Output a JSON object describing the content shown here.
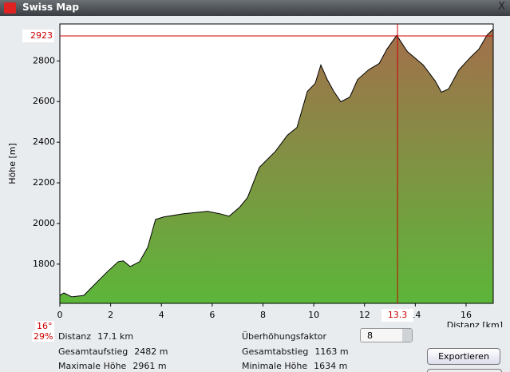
{
  "window": {
    "title": "Swiss Map",
    "close": "X"
  },
  "chart_data": {
    "type": "area",
    "y_label": "Höhe [m]",
    "x_label": "Distanz [km]",
    "x": [
      0,
      0.16,
      0.47,
      0.94,
      1.26,
      1.89,
      2.3,
      2.5,
      2.77,
      3.14,
      3.46,
      3.77,
      4.09,
      4.87,
      5.82,
      6.29,
      6.67,
      7.08,
      7.39,
      7.86,
      8.49,
      8.96,
      9.34,
      9.75,
      10.06,
      10.28,
      10.53,
      10.79,
      11.07,
      11.42,
      11.73,
      12.17,
      12.58,
      12.89,
      13.27,
      13.68,
      14.31,
      14.78,
      15.03,
      15.31,
      15.72,
      16.19,
      16.51,
      16.82,
      17.07
    ],
    "values": [
      1646,
      1658,
      1639,
      1646,
      1686,
      1765,
      1812,
      1816,
      1788,
      1812,
      1883,
      2020,
      2032,
      2048,
      2060,
      2048,
      2036,
      2080,
      2127,
      2276,
      2355,
      2434,
      2473,
      2650,
      2690,
      2780,
      2709,
      2650,
      2599,
      2622,
      2709,
      2757,
      2788,
      2859,
      2926,
      2847,
      2780,
      2702,
      2646,
      2662,
      2757,
      2820,
      2859,
      2926,
      2957
    ],
    "xlim": [
      0,
      17.07
    ],
    "ylim": [
      1607,
      2982
    ],
    "xticks": [
      0,
      2,
      4,
      6,
      8,
      10,
      12,
      14,
      16
    ],
    "yticks": [
      1800,
      2000,
      2200,
      2400,
      2600,
      2800
    ],
    "crosshair": {
      "x": 13.3,
      "y": 2923
    },
    "color_low": "#5cb63a",
    "color_high": "#a46e4c",
    "line_color": "#000000",
    "crosshair_color": "#cc0000"
  },
  "slope": {
    "degrees": "16°",
    "percent": "29%"
  },
  "info": [
    {
      "label": "Distanz",
      "value": "17.1 km"
    },
    {
      "label": "Gesamtaufstieg",
      "value": "2482 m"
    },
    {
      "label": "Maximale Höhe",
      "value": "2961 m"
    },
    {
      "label": "Gesamtabstieg",
      "value": "1163 m"
    },
    {
      "label": "Minimale Höhe",
      "value": "1634 m"
    }
  ],
  "exaggeration": {
    "label": "Überhöhungsfaktor",
    "value": "8"
  },
  "export_button": "Exportieren"
}
